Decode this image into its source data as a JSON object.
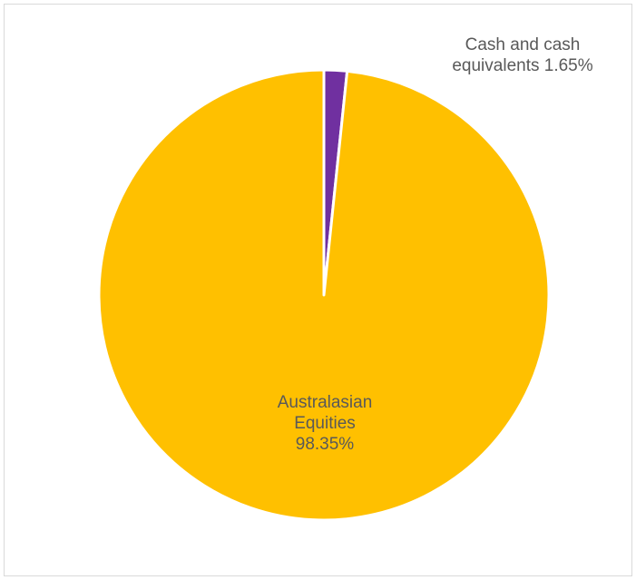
{
  "chart_data": {
    "type": "pie",
    "slices": [
      {
        "label_lines": [
          "Cash and cash",
          "equivalents 1.65%"
        ],
        "value": 1.65,
        "color": "#7030a0"
      },
      {
        "label_lines": [
          "Australasian",
          "Equities",
          "98.35%"
        ],
        "value": 98.35,
        "color": "#ffc000"
      }
    ],
    "start_angle_deg": 0,
    "direction": "clockwise",
    "legend": "none",
    "slice_border_color": "#ffffff"
  }
}
